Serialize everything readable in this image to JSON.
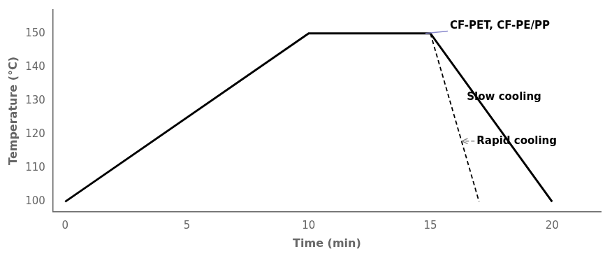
{
  "chart_data": {
    "type": "line",
    "xlabel": "Time (min)",
    "ylabel": "Temperature (°C)",
    "xlim": [
      -0.5,
      22
    ],
    "ylim": [
      97,
      157
    ],
    "xticks": [
      0,
      5,
      10,
      15,
      20
    ],
    "yticks": [
      100,
      110,
      120,
      130,
      140,
      150
    ],
    "grid": false,
    "series": [
      {
        "x": [
          0,
          10,
          15,
          20
        ],
        "values": [
          100,
          150,
          150,
          100
        ],
        "color": "#000000",
        "line_style": "solid"
      },
      {
        "x": [
          15,
          17
        ],
        "values": [
          150,
          100
        ],
        "color": "#000000",
        "line_style": "dashed"
      }
    ],
    "annotations": [
      {
        "text": "CF-PET, CF-PE/PP",
        "xy": [
          14.8,
          150
        ],
        "xytext": [
          15.8,
          150.5
        ],
        "color": "#8888cc",
        "line_style": "solid"
      },
      {
        "text": "Slow cooling",
        "xy": [
          18.5,
          131
        ],
        "xytext": [
          16.5,
          131
        ],
        "color": "#888888",
        "marker": "arrow",
        "line_style": "solid"
      },
      {
        "text": "Rapid cooling",
        "xy": [
          16.3,
          118
        ],
        "xytext": [
          16.9,
          118
        ],
        "color": "#888888",
        "marker": "arrow",
        "line_style": "dashed"
      }
    ]
  }
}
